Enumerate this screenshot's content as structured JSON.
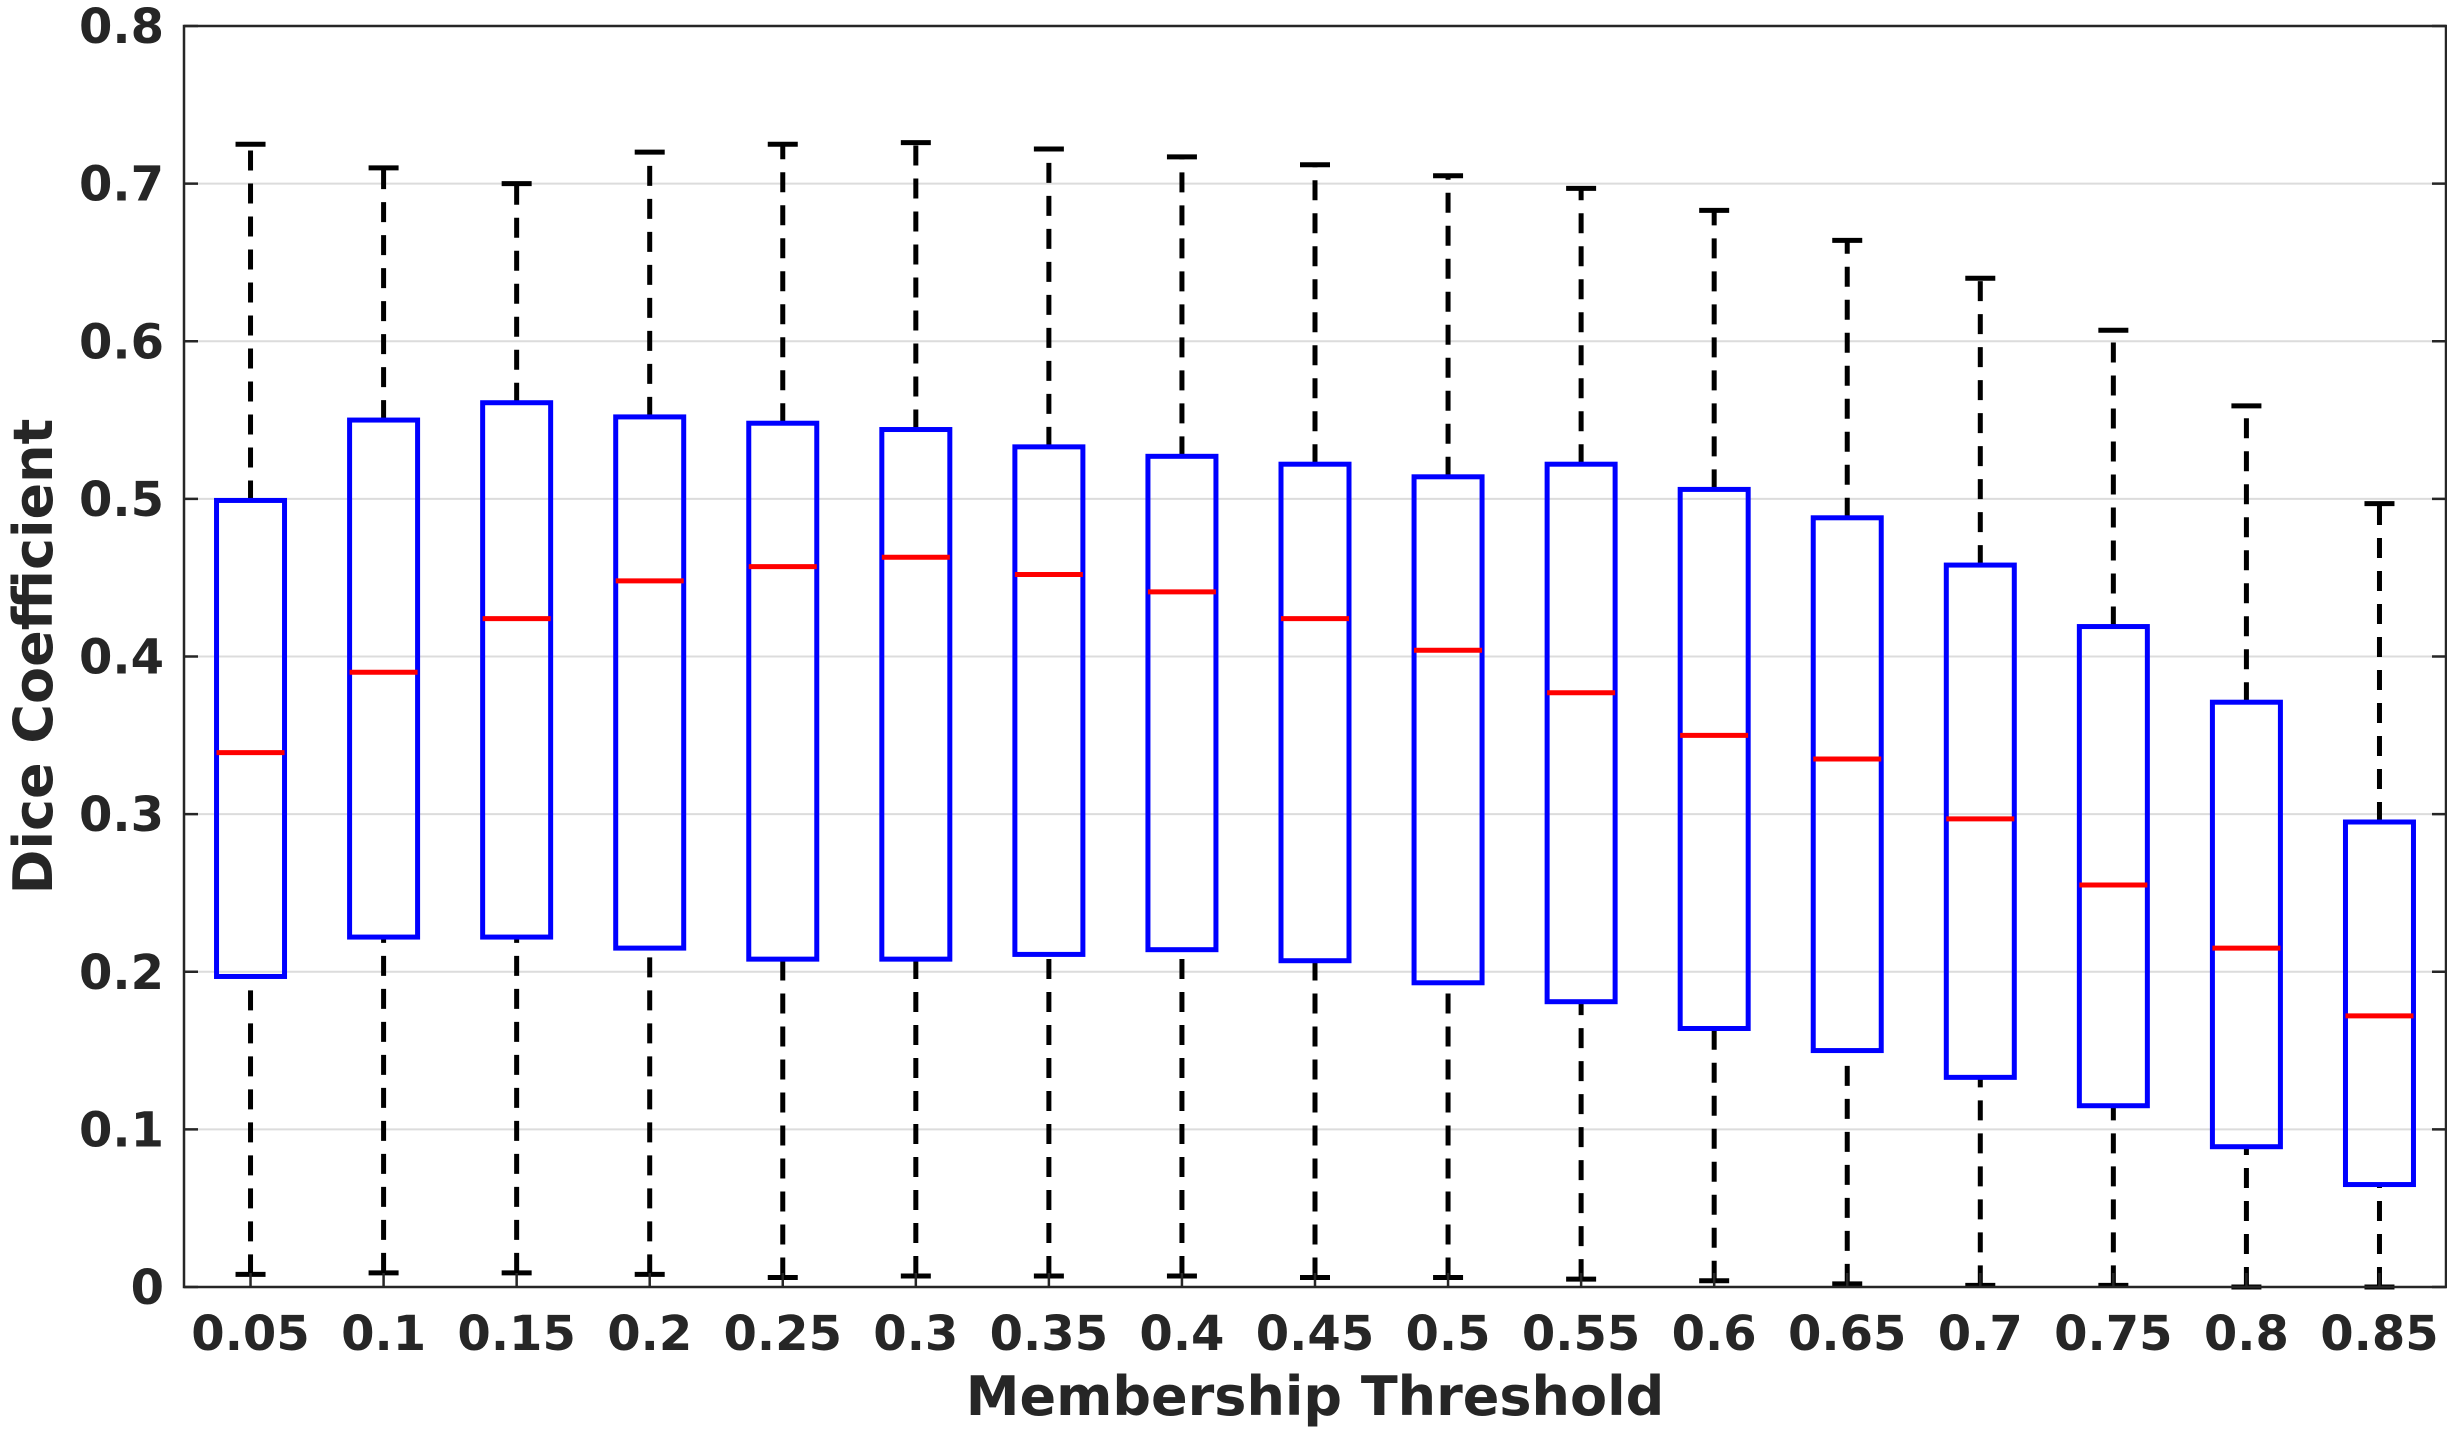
{
  "chart_data": {
    "type": "box",
    "title": "",
    "xlabel": "Membership Threshold",
    "ylabel": "Dice Coefficient",
    "ylim": [
      0,
      0.8
    ],
    "yticks": [
      "0",
      "0.1",
      "0.2",
      "0.3",
      "0.4",
      "0.5",
      "0.6",
      "0.7",
      "0.8"
    ],
    "grid": "horizontal",
    "categories": [
      "0.05",
      "0.1",
      "0.15",
      "0.2",
      "0.25",
      "0.3",
      "0.35",
      "0.4",
      "0.45",
      "0.5",
      "0.55",
      "0.6",
      "0.65",
      "0.7",
      "0.75",
      "0.8",
      "0.85"
    ],
    "boxes": [
      {
        "min": 0.008,
        "q1": 0.197,
        "median": 0.339,
        "q3": 0.499,
        "max": 0.725
      },
      {
        "min": 0.009,
        "q1": 0.222,
        "median": 0.39,
        "q3": 0.55,
        "max": 0.71
      },
      {
        "min": 0.009,
        "q1": 0.222,
        "median": 0.424,
        "q3": 0.561,
        "max": 0.7
      },
      {
        "min": 0.008,
        "q1": 0.215,
        "median": 0.448,
        "q3": 0.552,
        "max": 0.72
      },
      {
        "min": 0.006,
        "q1": 0.208,
        "median": 0.457,
        "q3": 0.548,
        "max": 0.725
      },
      {
        "min": 0.007,
        "q1": 0.208,
        "median": 0.463,
        "q3": 0.544,
        "max": 0.726
      },
      {
        "min": 0.007,
        "q1": 0.211,
        "median": 0.452,
        "q3": 0.533,
        "max": 0.722
      },
      {
        "min": 0.007,
        "q1": 0.214,
        "median": 0.441,
        "q3": 0.527,
        "max": 0.717
      },
      {
        "min": 0.006,
        "q1": 0.207,
        "median": 0.424,
        "q3": 0.522,
        "max": 0.712
      },
      {
        "min": 0.006,
        "q1": 0.193,
        "median": 0.404,
        "q3": 0.514,
        "max": 0.705
      },
      {
        "min": 0.005,
        "q1": 0.181,
        "median": 0.377,
        "q3": 0.522,
        "max": 0.697
      },
      {
        "min": 0.004,
        "q1": 0.164,
        "median": 0.35,
        "q3": 0.506,
        "max": 0.683
      },
      {
        "min": 0.002,
        "q1": 0.15,
        "median": 0.335,
        "q3": 0.488,
        "max": 0.664
      },
      {
        "min": 0.001,
        "q1": 0.133,
        "median": 0.297,
        "q3": 0.458,
        "max": 0.64
      },
      {
        "min": 0.001,
        "q1": 0.115,
        "median": 0.255,
        "q3": 0.419,
        "max": 0.607
      },
      {
        "min": 0.0,
        "q1": 0.089,
        "median": 0.215,
        "q3": 0.371,
        "max": 0.559
      },
      {
        "min": 0.0,
        "q1": 0.065,
        "median": 0.172,
        "q3": 0.295,
        "max": 0.497
      }
    ],
    "colors": {
      "box": "#0000ff",
      "median": "#ff0000",
      "whisker": "#000000",
      "grid": "#dcdcdc",
      "axis": "#262626"
    }
  }
}
